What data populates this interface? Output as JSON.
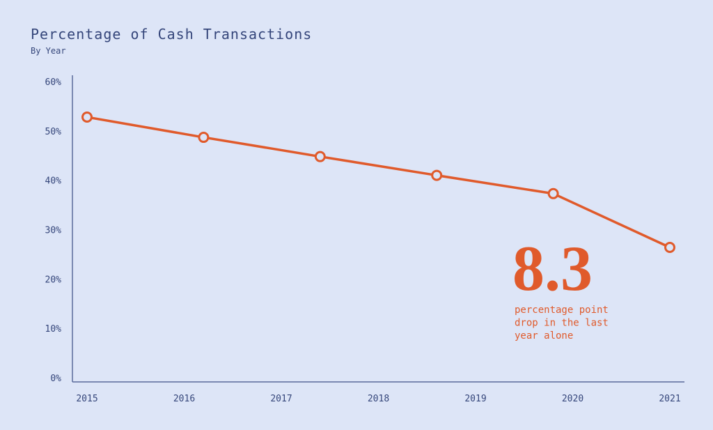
{
  "chart_data": {
    "type": "line",
    "title": "Percentage of Cash Transactions",
    "subtitle": "By Year",
    "x": [
      2015,
      2016.2,
      2017.4,
      2018.6,
      2019.8,
      2021
    ],
    "xlim": [
      2015,
      2021
    ],
    "xticks": [
      2015,
      2016,
      2017,
      2018,
      2019,
      2020,
      2021
    ],
    "series": [
      {
        "name": "Cash transactions",
        "color": "#e05a2b",
        "values": [
          52.8,
          48.7,
          44.8,
          41.0,
          37.3,
          26.4
        ]
      }
    ],
    "ylim": [
      0,
      60
    ],
    "yticks": [
      {
        "value": 0,
        "label": "0%"
      },
      {
        "value": 10,
        "label": "10%"
      },
      {
        "value": 20,
        "label": "20%"
      },
      {
        "value": 30,
        "label": "30%"
      },
      {
        "value": 40,
        "label": "40%"
      },
      {
        "value": 50,
        "label": "50%"
      },
      {
        "value": 60,
        "label": "60%"
      }
    ],
    "grid": false,
    "annotation": {
      "headline": "8.3",
      "lines": [
        "percentage point",
        "drop in the last",
        "year alone"
      ]
    }
  }
}
